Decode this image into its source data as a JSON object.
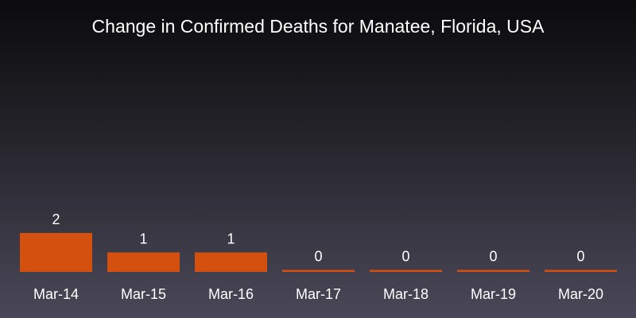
{
  "chart_data": {
    "type": "bar",
    "title": "Change in Confirmed Deaths for Manatee, Florida, USA",
    "xlabel": "",
    "ylabel": "",
    "categories": [
      "Mar-14",
      "Mar-15",
      "Mar-16",
      "Mar-17",
      "Mar-18",
      "Mar-19",
      "Mar-20"
    ],
    "values": [
      2,
      1,
      1,
      0,
      0,
      0,
      0
    ],
    "ylim": [
      0,
      2
    ],
    "grid": false,
    "legend": "none",
    "bar_color": "#d4500f"
  }
}
